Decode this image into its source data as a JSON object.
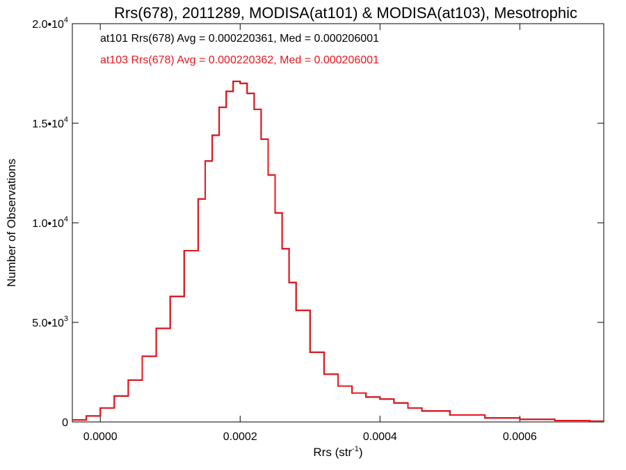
{
  "chart_data": {
    "type": "histogram-step",
    "title": "Rrs(678), 2011289, MODISA(at101) & MODISA(at103), Mesotrophic",
    "xlabel": "Rrs (str",
    "xlabel_sup": "-1",
    "xlabel_close": ")",
    "ylabel": "Number of Observations",
    "xlim": [
      -4e-05,
      0.00072
    ],
    "ylim": [
      0,
      20000
    ],
    "x_ticks": [
      {
        "value": 0.0,
        "label": "0.0000"
      },
      {
        "value": 0.0002,
        "label": "0.0002"
      },
      {
        "value": 0.0004,
        "label": "0.0004"
      },
      {
        "value": 0.0006,
        "label": "0.0006"
      }
    ],
    "y_ticks": [
      {
        "value": 0,
        "base": "0",
        "exp": ""
      },
      {
        "value": 5000,
        "base": "5.0•10",
        "exp": "3"
      },
      {
        "value": 10000,
        "base": "1.0•10",
        "exp": "4"
      },
      {
        "value": 15000,
        "base": "1.5•10",
        "exp": "4"
      },
      {
        "value": 20000,
        "base": "2.0•10",
        "exp": "4"
      }
    ],
    "annotations": [
      {
        "text": "at101 Rrs(678) Avg = 0.000220361, Med = 0.000206001",
        "color": "#000000"
      },
      {
        "text": "at103 Rrs(678) Avg = 0.000220362, Med = 0.000206001",
        "color": "#e8141c"
      }
    ],
    "series": [
      {
        "name": "at101",
        "color": "#000000",
        "x": [
          -4e-05,
          -2e-05,
          0.0,
          2e-05,
          4e-05,
          6e-05,
          8e-05,
          0.0001,
          0.00012,
          0.00014,
          0.00015,
          0.00016,
          0.00017,
          0.00018,
          0.00019,
          0.0002,
          0.00021,
          0.00022,
          0.00023,
          0.00024,
          0.00025,
          0.00026,
          0.00027,
          0.00028,
          0.0003,
          0.00032,
          0.00034,
          0.00036,
          0.00038,
          0.0004,
          0.00042,
          0.00044,
          0.00046,
          0.0005,
          0.00055,
          0.0006,
          0.00065,
          0.0007,
          0.00072
        ],
        "values": [
          100,
          300,
          700,
          1300,
          2100,
          3300,
          4700,
          6300,
          8600,
          11200,
          13100,
          14400,
          15800,
          16600,
          17100,
          17000,
          16500,
          15700,
          14200,
          12400,
          10500,
          8700,
          7000,
          5600,
          3500,
          2400,
          1800,
          1450,
          1250,
          1150,
          950,
          700,
          550,
          350,
          200,
          130,
          70,
          40,
          20
        ]
      },
      {
        "name": "at103",
        "color": "#e8141c",
        "x": [
          -4e-05,
          -2e-05,
          0.0,
          2e-05,
          4e-05,
          6e-05,
          8e-05,
          0.0001,
          0.00012,
          0.00014,
          0.00015,
          0.00016,
          0.00017,
          0.00018,
          0.00019,
          0.0002,
          0.00021,
          0.00022,
          0.00023,
          0.00024,
          0.00025,
          0.00026,
          0.00027,
          0.00028,
          0.0003,
          0.00032,
          0.00034,
          0.00036,
          0.00038,
          0.0004,
          0.00042,
          0.00044,
          0.00046,
          0.0005,
          0.00055,
          0.0006,
          0.00065,
          0.0007,
          0.00072
        ],
        "values": [
          100,
          300,
          700,
          1300,
          2100,
          3300,
          4700,
          6300,
          8600,
          11200,
          13100,
          14400,
          15800,
          16600,
          17100,
          17000,
          16500,
          15700,
          14200,
          12400,
          10500,
          8700,
          7000,
          5600,
          3500,
          2400,
          1800,
          1450,
          1250,
          1150,
          950,
          700,
          550,
          350,
          200,
          130,
          70,
          40,
          20
        ]
      }
    ]
  }
}
